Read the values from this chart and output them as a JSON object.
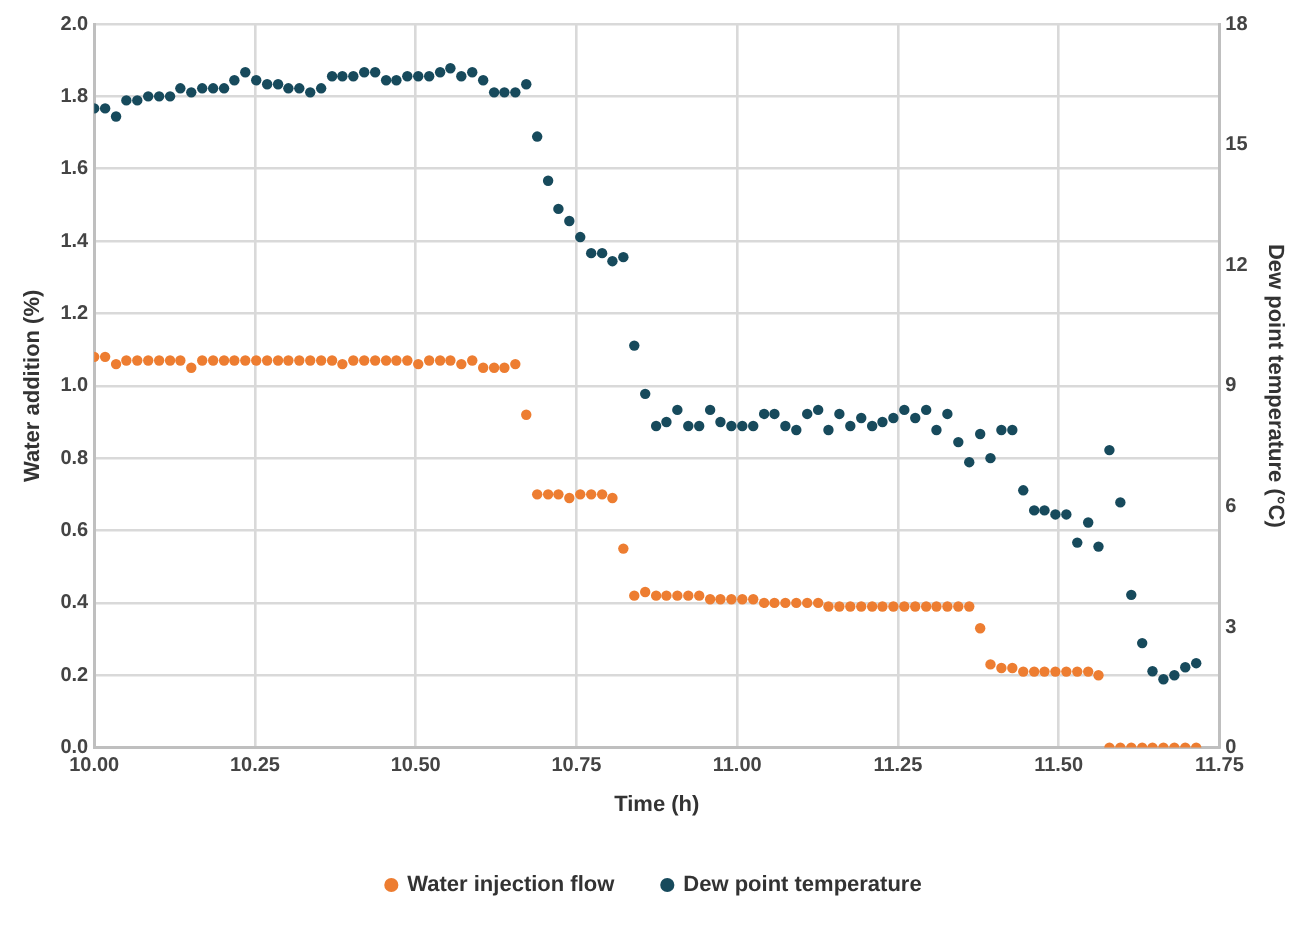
{
  "chart_data": {
    "type": "scatter",
    "xlabel": "Time (h)",
    "ylabel": "Water addition (%)",
    "y2label": "Dew point temperature (°C)",
    "x": [
      10.0,
      10.017,
      10.034,
      10.05,
      10.067,
      10.084,
      10.101,
      10.118,
      10.134,
      10.151,
      10.168,
      10.185,
      10.202,
      10.218,
      10.235,
      10.252,
      10.269,
      10.286,
      10.302,
      10.319,
      10.336,
      10.353,
      10.37,
      10.386,
      10.403,
      10.42,
      10.437,
      10.454,
      10.47,
      10.487,
      10.504,
      10.521,
      10.538,
      10.554,
      10.571,
      10.588,
      10.605,
      10.622,
      10.638,
      10.655,
      10.672,
      10.689,
      10.706,
      10.722,
      10.739,
      10.756,
      10.773,
      10.79,
      10.806,
      10.823,
      10.84,
      10.857,
      10.874,
      10.89,
      10.907,
      10.924,
      10.941,
      10.958,
      10.974,
      10.991,
      11.008,
      11.025,
      11.042,
      11.058,
      11.075,
      11.092,
      11.109,
      11.126,
      11.142,
      11.159,
      11.176,
      11.193,
      11.21,
      11.226,
      11.243,
      11.26,
      11.277,
      11.294,
      11.31,
      11.327,
      11.344,
      11.361,
      11.378,
      11.394,
      11.411,
      11.428,
      11.445,
      11.462,
      11.478,
      11.495,
      11.512,
      11.529,
      11.546,
      11.562,
      11.579,
      11.596,
      11.613,
      11.63,
      11.646,
      11.663,
      11.68,
      11.697,
      11.714
    ],
    "series": [
      {
        "name": "Water injection flow",
        "color": "#ed7d31",
        "values": [
          1.08,
          1.08,
          1.06,
          1.07,
          1.07,
          1.07,
          1.07,
          1.07,
          1.07,
          1.05,
          1.07,
          1.07,
          1.07,
          1.07,
          1.07,
          1.07,
          1.07,
          1.07,
          1.07,
          1.07,
          1.07,
          1.07,
          1.07,
          1.06,
          1.07,
          1.07,
          1.07,
          1.07,
          1.07,
          1.07,
          1.06,
          1.07,
          1.07,
          1.07,
          1.06,
          1.07,
          1.05,
          1.05,
          1.05,
          1.06,
          0.92,
          0.7,
          0.7,
          0.7,
          0.69,
          0.7,
          0.7,
          0.7,
          0.69,
          0.55,
          0.42,
          0.43,
          0.42,
          0.42,
          0.42,
          0.42,
          0.42,
          0.41,
          0.41,
          0.41,
          0.41,
          0.41,
          0.4,
          0.4,
          0.4,
          0.4,
          0.4,
          0.4,
          0.39,
          0.39,
          0.39,
          0.39,
          0.39,
          0.39,
          0.39,
          0.39,
          0.39,
          0.39,
          0.39,
          0.39,
          0.39,
          0.39,
          0.33,
          0.23,
          0.22,
          0.22,
          0.21,
          0.21,
          0.21,
          0.21,
          0.21,
          0.21,
          0.21,
          0.2,
          0,
          0,
          0,
          0,
          0,
          0,
          0,
          0,
          0
        ]
      },
      {
        "name": "Dew point temperature",
        "color": "#174a5c",
        "axis": "y2",
        "values": [
          15.9,
          15.9,
          15.7,
          16.1,
          16.1,
          16.2,
          16.2,
          16.2,
          16.4,
          16.3,
          16.4,
          16.4,
          16.4,
          16.6,
          16.8,
          16.6,
          16.5,
          16.5,
          16.4,
          16.4,
          16.3,
          16.4,
          16.7,
          16.7,
          16.7,
          16.8,
          16.8,
          16.6,
          16.6,
          16.7,
          16.7,
          16.7,
          16.8,
          16.9,
          16.7,
          16.8,
          16.6,
          16.3,
          16.3,
          16.3,
          16.5,
          15.2,
          14.1,
          13.4,
          13.1,
          12.7,
          12.3,
          12.3,
          12.1,
          12.2,
          10.0,
          8.8,
          8.0,
          8.1,
          8.4,
          8.0,
          8.0,
          8.4,
          8.1,
          8.0,
          8.0,
          8.0,
          8.3,
          8.3,
          8.0,
          7.9,
          8.3,
          8.4,
          7.9,
          8.3,
          8.0,
          8.2,
          8.0,
          8.1,
          8.2,
          8.4,
          8.2,
          8.4,
          7.9,
          8.3,
          7.6,
          7.1,
          7.8,
          7.2,
          7.9,
          7.9,
          6.4,
          5.9,
          5.9,
          5.8,
          5.8,
          5.1,
          5.6,
          5.0,
          7.4,
          6.1,
          3.8,
          2.6,
          1.9,
          1.7,
          1.8,
          2.0,
          2.1
        ]
      }
    ],
    "xlim": [
      10,
      11.75
    ],
    "xticks": [
      {
        "value": 10,
        "label": "10.00"
      },
      {
        "value": 10.25,
        "label": "10.25"
      },
      {
        "value": 10.5,
        "label": "10.50"
      },
      {
        "value": 10.75,
        "label": "10.75"
      },
      {
        "value": 11,
        "label": "11.00"
      },
      {
        "value": 11.25,
        "label": "11.25"
      },
      {
        "value": 11.5,
        "label": "11.50"
      },
      {
        "value": 11.75,
        "label": "11.75"
      }
    ],
    "ylim": [
      0,
      2
    ],
    "yticks": [
      {
        "value": 0,
        "label": "0.0"
      },
      {
        "value": 0.2,
        "label": "0.2"
      },
      {
        "value": 0.4,
        "label": "0.4"
      },
      {
        "value": 0.6,
        "label": "0.6"
      },
      {
        "value": 0.8,
        "label": "0.8"
      },
      {
        "value": 1,
        "label": "1.0"
      },
      {
        "value": 1.2,
        "label": "1.2"
      },
      {
        "value": 1.4,
        "label": "1.4"
      },
      {
        "value": 1.6,
        "label": "1.6"
      },
      {
        "value": 1.8,
        "label": "1.8"
      },
      {
        "value": 2,
        "label": "2.0"
      }
    ],
    "y2lim": [
      0,
      18
    ],
    "y2ticks": [
      0,
      3,
      6,
      9,
      12,
      15,
      18
    ],
    "grid": true,
    "legend": "bottom",
    "marker": "circle"
  }
}
